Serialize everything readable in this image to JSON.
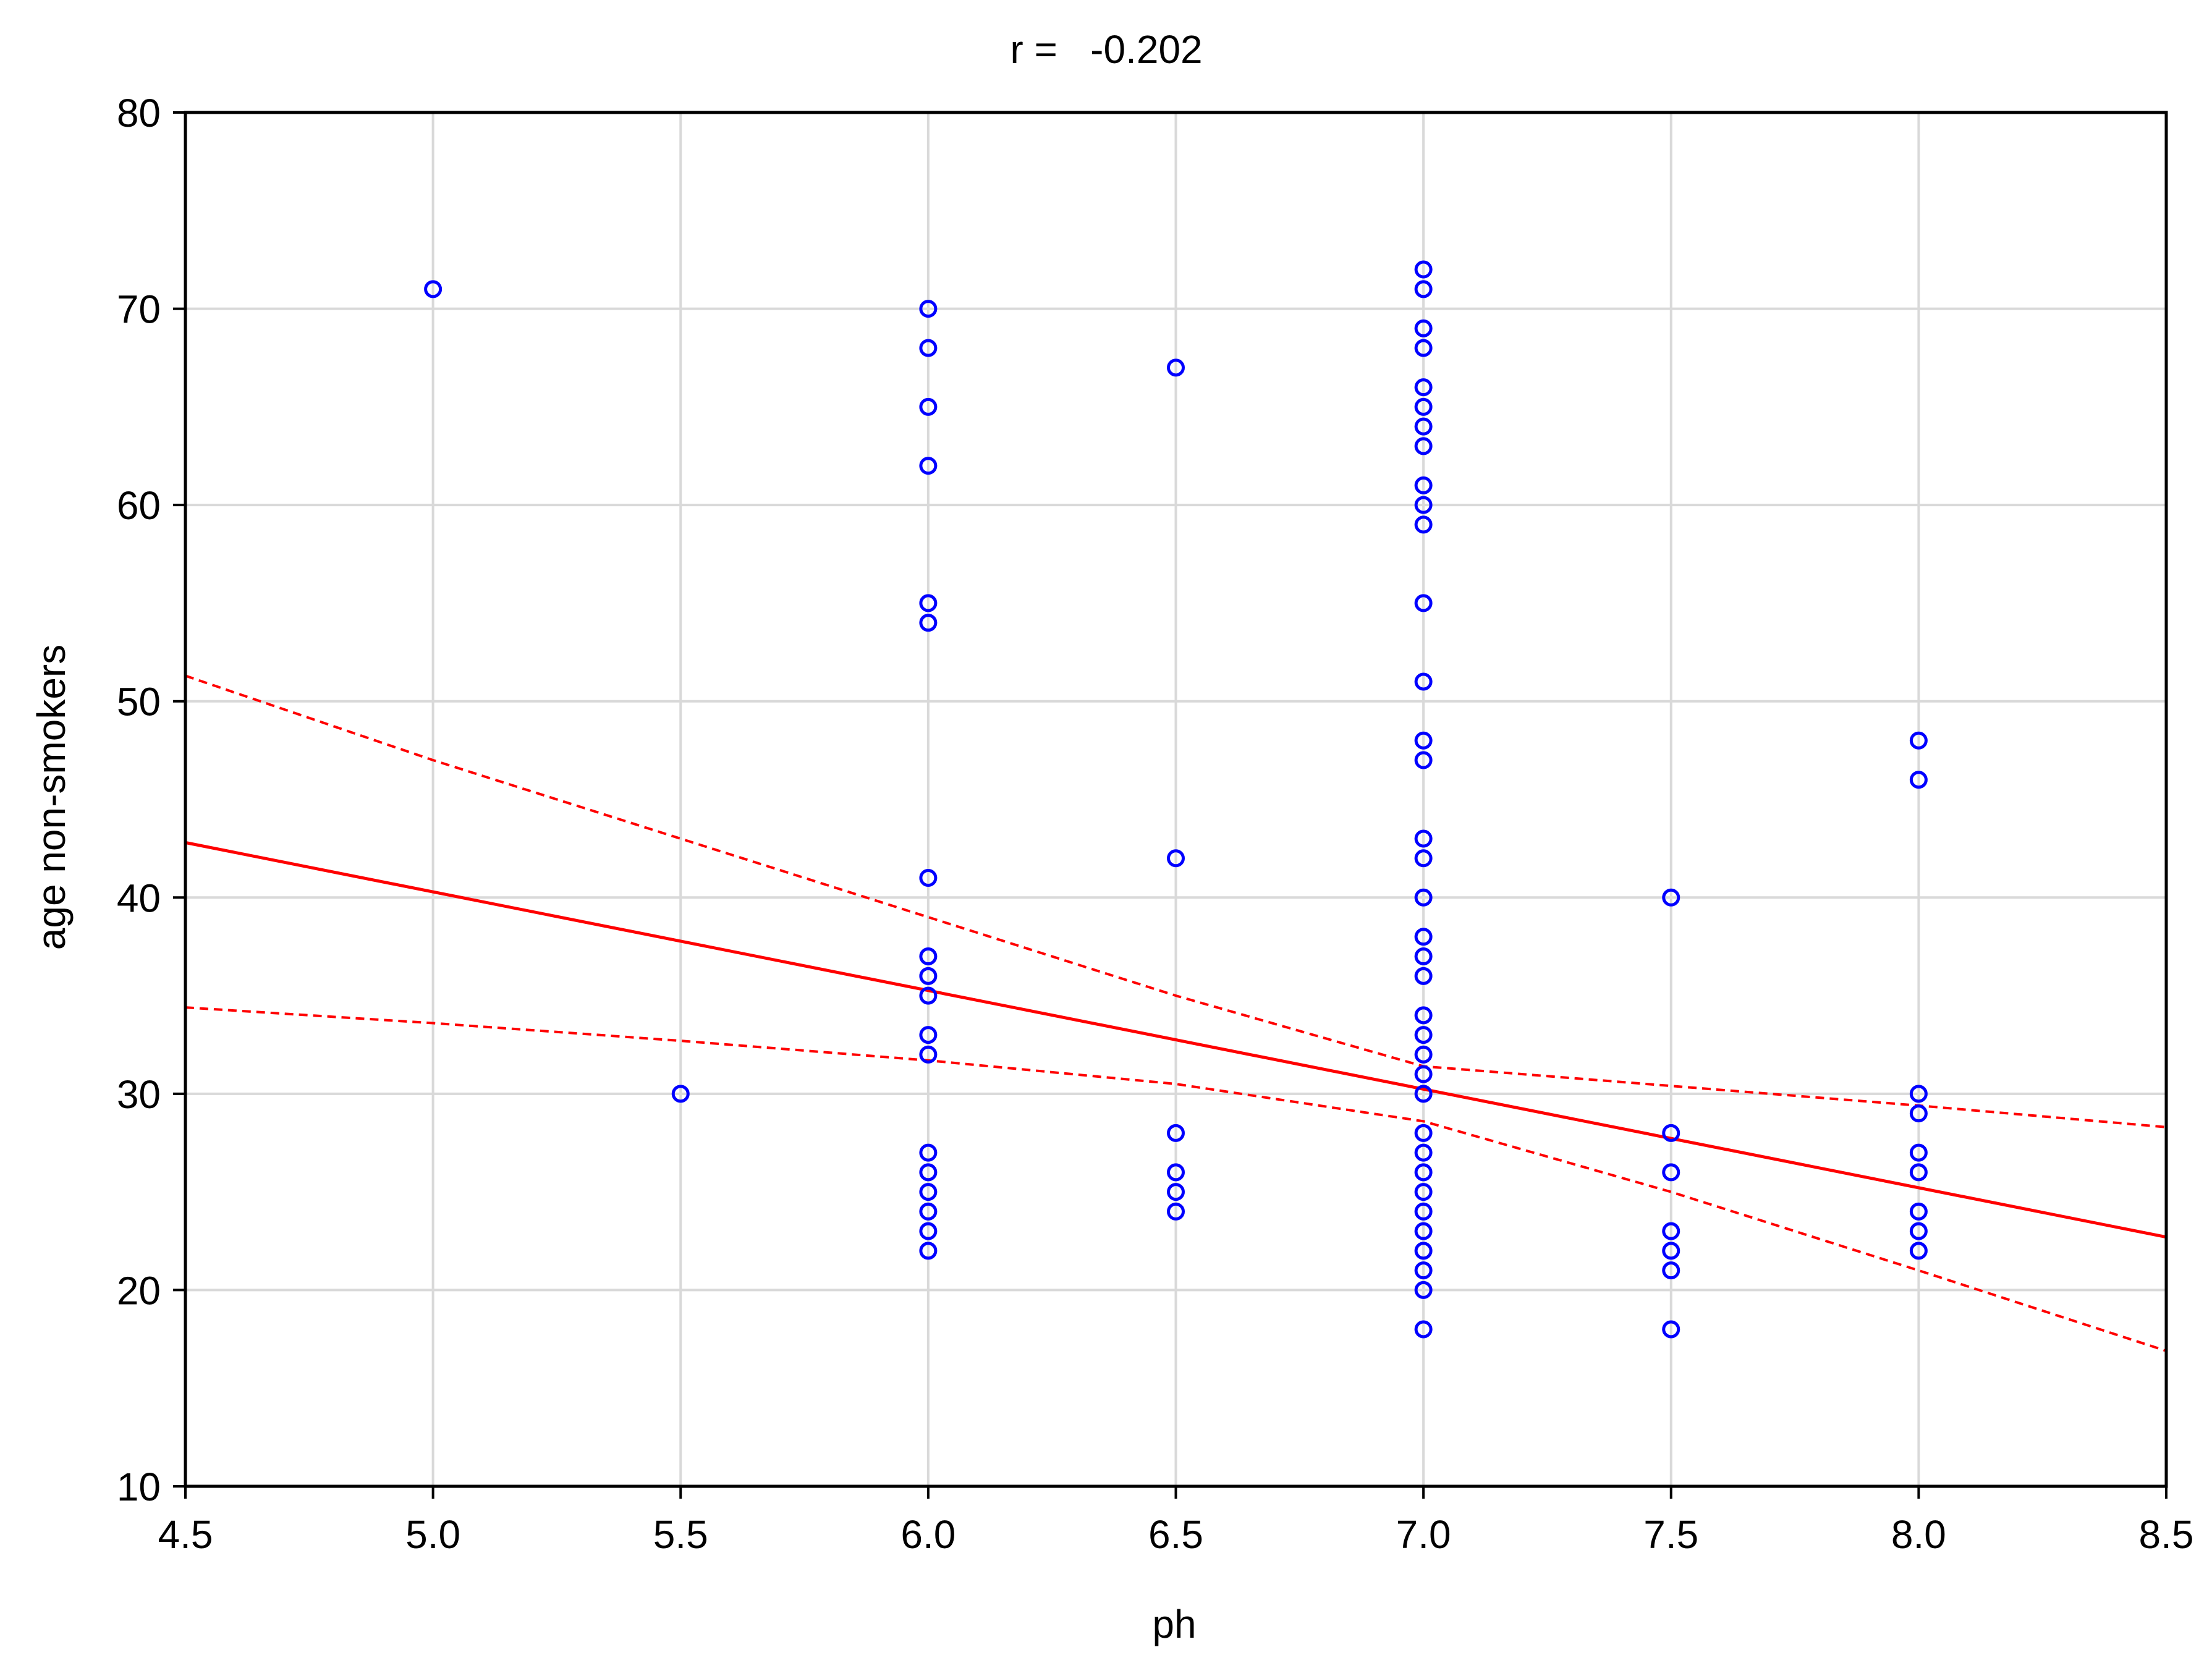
{
  "chart_data": {
    "type": "scatter",
    "title": "r =   -0.202",
    "xlabel": "ph",
    "ylabel": "age non-smokers",
    "xlim": [
      4.5,
      8.5
    ],
    "ylim": [
      10,
      80
    ],
    "x_ticks": [
      "4.5",
      "5.0",
      "5.5",
      "6.0",
      "6.5",
      "7.0",
      "7.5",
      "8.0",
      "8.5"
    ],
    "y_ticks": [
      "10",
      "20",
      "30",
      "40",
      "50",
      "60",
      "70",
      "80"
    ],
    "grid": true,
    "legend": "none",
    "series": [
      {
        "color": "#0000ff",
        "marker": "open-circle",
        "points": [
          [
            5.0,
            71
          ],
          [
            5.5,
            30
          ],
          [
            6.0,
            70
          ],
          [
            6.0,
            68
          ],
          [
            6.0,
            65
          ],
          [
            6.0,
            62
          ],
          [
            6.0,
            55
          ],
          [
            6.0,
            54
          ],
          [
            6.0,
            41
          ],
          [
            6.0,
            37
          ],
          [
            6.0,
            36
          ],
          [
            6.0,
            35
          ],
          [
            6.0,
            33
          ],
          [
            6.0,
            32
          ],
          [
            6.0,
            27
          ],
          [
            6.0,
            26
          ],
          [
            6.0,
            25
          ],
          [
            6.0,
            24
          ],
          [
            6.0,
            23
          ],
          [
            6.0,
            22
          ],
          [
            6.5,
            67
          ],
          [
            6.5,
            42
          ],
          [
            6.5,
            28
          ],
          [
            6.5,
            26
          ],
          [
            6.5,
            25
          ],
          [
            6.5,
            24
          ],
          [
            7.0,
            72
          ],
          [
            7.0,
            71
          ],
          [
            7.0,
            69
          ],
          [
            7.0,
            68
          ],
          [
            7.0,
            66
          ],
          [
            7.0,
            65
          ],
          [
            7.0,
            64
          ],
          [
            7.0,
            63
          ],
          [
            7.0,
            61
          ],
          [
            7.0,
            60
          ],
          [
            7.0,
            59
          ],
          [
            7.0,
            55
          ],
          [
            7.0,
            51
          ],
          [
            7.0,
            48
          ],
          [
            7.0,
            47
          ],
          [
            7.0,
            43
          ],
          [
            7.0,
            42
          ],
          [
            7.0,
            40
          ],
          [
            7.0,
            38
          ],
          [
            7.0,
            37
          ],
          [
            7.0,
            36
          ],
          [
            7.0,
            34
          ],
          [
            7.0,
            33
          ],
          [
            7.0,
            32
          ],
          [
            7.0,
            31
          ],
          [
            7.0,
            30
          ],
          [
            7.0,
            28
          ],
          [
            7.0,
            27
          ],
          [
            7.0,
            26
          ],
          [
            7.0,
            25
          ],
          [
            7.0,
            24
          ],
          [
            7.0,
            23
          ],
          [
            7.0,
            22
          ],
          [
            7.0,
            21
          ],
          [
            7.0,
            20
          ],
          [
            7.0,
            18
          ],
          [
            7.5,
            40
          ],
          [
            7.5,
            28
          ],
          [
            7.5,
            26
          ],
          [
            7.5,
            23
          ],
          [
            7.5,
            22
          ],
          [
            7.5,
            21
          ],
          [
            7.5,
            18
          ],
          [
            8.0,
            48
          ],
          [
            8.0,
            46
          ],
          [
            8.0,
            30
          ],
          [
            8.0,
            29
          ],
          [
            8.0,
            27
          ],
          [
            8.0,
            26
          ],
          [
            8.0,
            24
          ],
          [
            8.0,
            23
          ],
          [
            8.0,
            22
          ]
        ]
      }
    ],
    "regression": {
      "color": "#ff0000",
      "line": [
        [
          4.5,
          42.8
        ],
        [
          8.5,
          22.7
        ]
      ],
      "ci_upper": [
        [
          4.5,
          51.3
        ],
        [
          5.0,
          47.0
        ],
        [
          5.5,
          43.0
        ],
        [
          6.0,
          39.0
        ],
        [
          6.5,
          35.0
        ],
        [
          7.0,
          31.4
        ],
        [
          7.5,
          30.4
        ],
        [
          8.0,
          29.4
        ],
        [
          8.5,
          28.3
        ]
      ],
      "ci_lower": [
        [
          4.5,
          34.4
        ],
        [
          5.0,
          33.6
        ],
        [
          5.5,
          32.7
        ],
        [
          6.0,
          31.7
        ],
        [
          6.5,
          30.5
        ],
        [
          7.0,
          28.6
        ],
        [
          7.5,
          25.0
        ],
        [
          8.0,
          21.0
        ],
        [
          8.5,
          16.9
        ]
      ]
    }
  }
}
